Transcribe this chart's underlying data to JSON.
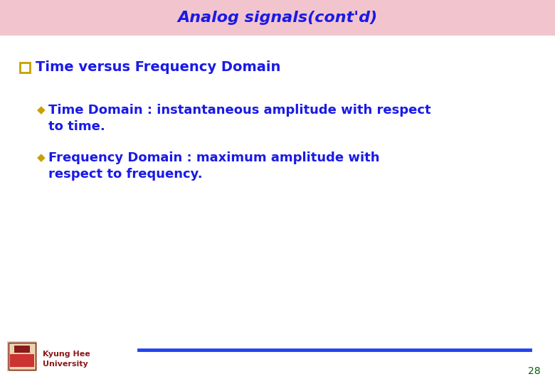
{
  "title": "Analog signals(cont'd)",
  "title_color": "#1A1AE6",
  "title_bg_color": "#F2C4CE",
  "title_fontsize": 16,
  "bg_color": "#FFFFFF",
  "q_text": "Time versus Frequency Domain",
  "q_color": "#1A1AE6",
  "q_fontsize": 14,
  "bullet_color": "#C8A000",
  "bullet_text_color": "#1A1AE6",
  "bullet_fontsize": 13,
  "footer_color": "#8B1A1A",
  "footer_fontsize": 8,
  "page_number": "28",
  "page_color": "#006400",
  "page_fontsize": 10,
  "line_color": "#2244EE",
  "line_width": 3.5
}
